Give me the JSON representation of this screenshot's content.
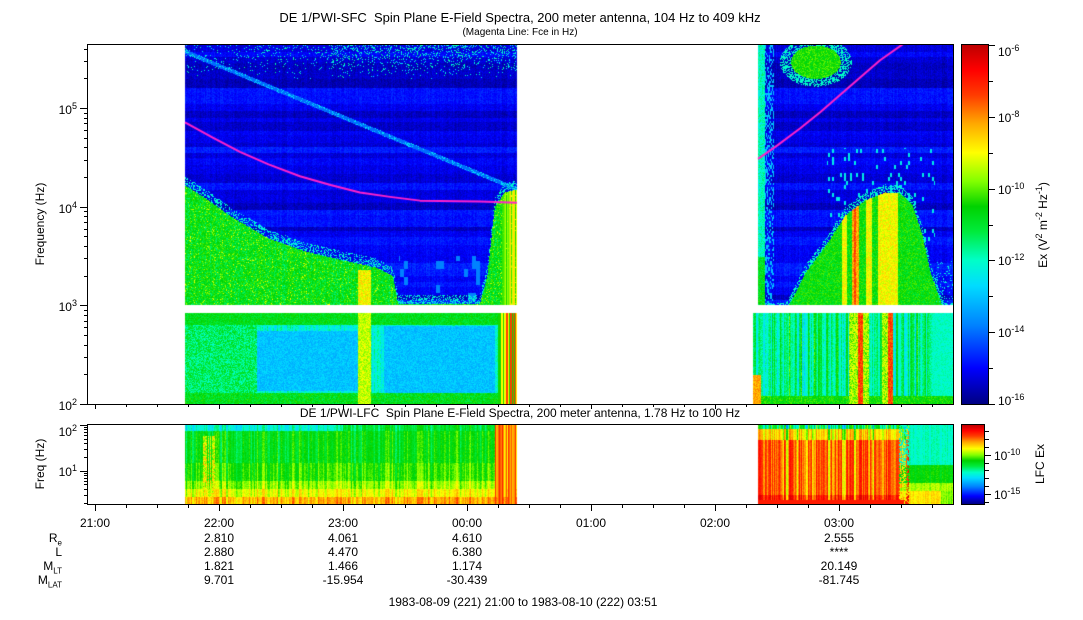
{
  "header": {
    "title": "DE 1/PWI-SFC  Spin Plane E-Field Spectra, 200 meter antenna, 104 Hz to 409 kHz",
    "subtitle": "(Magenta Line: Fce in Hz)"
  },
  "caption": "1983-08-09 (221) 21:00 to 1983-08-10 (222) 03:51",
  "ephemeris": {
    "row_labels": [
      {
        "base": "R",
        "sub": "e"
      },
      {
        "base": "L",
        "sub": ""
      },
      {
        "base": "M",
        "sub": "LT"
      },
      {
        "base": "M",
        "sub": "LAT"
      }
    ],
    "columns": [
      {
        "time_label": "22:00",
        "t": 22,
        "values": [
          "2.810",
          "2.880",
          "1.821",
          "9.701"
        ]
      },
      {
        "time_label": "23:00",
        "t": 23,
        "values": [
          "4.061",
          "4.470",
          "1.466",
          "-15.954"
        ]
      },
      {
        "time_label": "00:00",
        "t": 24,
        "values": [
          "4.610",
          "6.380",
          "1.174",
          "-30.439"
        ]
      },
      {
        "time_label": "03:00",
        "t": 27,
        "values": [
          "2.555",
          "****",
          "20.149",
          "-81.745"
        ]
      }
    ]
  },
  "chart_data": {
    "type": "heatmap",
    "description": "Two time-frequency electric-field spectrograms (SFC 104 Hz - 409 kHz, LFC 1.78 Hz - 100 Hz) with rainbow colormap, two data segments separated by gaps, white receiver-band gap near 1 kHz, and magenta electron cyclotron frequency (Fce) overlay",
    "colormap": [
      [
        0,
        0,
        0,
        130
      ],
      [
        0.1,
        0,
        0,
        255
      ],
      [
        0.22,
        0,
        130,
        255
      ],
      [
        0.33,
        0,
        220,
        255
      ],
      [
        0.4,
        0,
        255,
        200
      ],
      [
        0.48,
        0,
        235,
        60
      ],
      [
        0.55,
        0,
        210,
        0
      ],
      [
        0.62,
        130,
        255,
        0
      ],
      [
        0.7,
        255,
        255,
        0
      ],
      [
        0.78,
        255,
        170,
        0
      ],
      [
        0.86,
        255,
        60,
        0
      ],
      [
        0.93,
        255,
        0,
        0
      ],
      [
        1,
        190,
        0,
        0
      ]
    ],
    "time_axis": {
      "t_min": 20.944,
      "t_max": 27.919,
      "hours": [
        {
          "t": 21,
          "label": "21:00"
        },
        {
          "t": 22,
          "label": "22:00"
        },
        {
          "t": 23,
          "label": "23:00"
        },
        {
          "t": 24,
          "label": "00:00"
        },
        {
          "t": 25,
          "label": "01:00"
        },
        {
          "t": 26,
          "label": "02:00"
        },
        {
          "t": 27,
          "label": "03:00"
        }
      ],
      "minor_step_hours": 0.25
    },
    "sfc": {
      "ylabel": "Frequency (Hz)",
      "y_range_exp": [
        2.0,
        5.64
      ],
      "tick_base": "10",
      "yticks_exp": [
        5,
        4,
        3,
        2
      ],
      "white_band_exp": [
        2.93,
        3.0
      ],
      "colorbar": {
        "label_parts": [
          {
            "t": "Ex (V"
          },
          {
            "s": "2"
          },
          {
            "t": " m"
          },
          {
            "s": "-2"
          },
          {
            "t": " Hz"
          },
          {
            "s": "-1"
          },
          {
            "t": ")"
          }
        ],
        "range_exp": [
          -6,
          -16
        ],
        "major_ticks_exp": [
          -6,
          -8,
          -10,
          -12,
          -14,
          -16
        ],
        "minor_ticks_exp": [
          -7,
          -9,
          -11,
          -13,
          -15
        ]
      },
      "fce_line": {
        "color": "#FF22CC",
        "width": 2,
        "segments": [
          [
            [
              21.726,
              4.856
            ],
            [
              21.95,
              4.7
            ],
            [
              22.169,
              4.557
            ],
            [
              22.4,
              4.43
            ],
            [
              22.653,
              4.309
            ],
            [
              22.9,
              4.22
            ],
            [
              23.137,
              4.144
            ],
            [
              23.38,
              4.1
            ],
            [
              23.621,
              4.062
            ],
            [
              24.105,
              4.052
            ],
            [
              24.403,
              4.041
            ]
          ],
          [
            [
              26.347,
              4.485
            ],
            [
              26.5,
              4.62
            ],
            [
              26.685,
              4.794
            ],
            [
              26.85,
              4.96
            ],
            [
              27.008,
              5.134
            ],
            [
              27.17,
              5.31
            ],
            [
              27.331,
              5.485
            ],
            [
              27.573,
              5.7
            ]
          ]
        ]
      },
      "features": {
        "block1": {
          "t_range": [
            21.726,
            24.403
          ],
          "green_boundary": [
            [
              21.726,
              4.22
            ],
            [
              21.9,
              4.08
            ],
            [
              22.1,
              3.9
            ],
            [
              22.4,
              3.68
            ],
            [
              22.7,
              3.55
            ],
            [
              23.0,
              3.46
            ],
            [
              23.26,
              3.39
            ],
            [
              23.4,
              3.3
            ],
            [
              23.44,
              3.02
            ],
            [
              24.1,
              3.02
            ],
            [
              24.16,
              3.3
            ],
            [
              24.22,
              4.0
            ],
            [
              24.3,
              4.15
            ],
            [
              24.403,
              4.18
            ]
          ],
          "diag_streak": {
            "t0": 21.93,
            "e0": 5.47,
            "t1": 24.0,
            "e1": 4.39
          },
          "yellow_streak_t": [
            23.12,
            23.22
          ],
          "yellow_streak_emax": 3.36,
          "top_speckle_emin": 5.3,
          "speckle_dense_t": 22.9,
          "end_bright_t": 24.28,
          "bowls": [
            {
              "t": [
                22.25,
                23.15
              ],
              "e": [
                2.14,
                2.75
              ]
            },
            {
              "t": [
                23.33,
                24.22
              ],
              "e": [
                2.09,
                2.8
              ]
            }
          ],
          "left_green_t": 22.3,
          "end_streaks_t": 24.25
        },
        "block2": {
          "t_range_above": [
            26.339,
            27.919
          ],
          "t_range_below": [
            26.306,
            27.919
          ],
          "left_col_t": 26.4,
          "blob": {
            "t": 26.81,
            "e": 5.47,
            "rt": 0.2,
            "re": 0.17
          },
          "funnel_boundary": [
            [
              26.57,
              2.95
            ],
            [
              26.73,
              3.34
            ],
            [
              26.89,
              3.61
            ],
            [
              27.05,
              3.92
            ],
            [
              27.21,
              4.07
            ],
            [
              27.37,
              4.15
            ],
            [
              27.49,
              4.14
            ],
            [
              27.59,
              4.02
            ],
            [
              27.67,
              3.71
            ],
            [
              27.73,
              3.36
            ],
            [
              27.8,
              3.1
            ],
            [
              27.85,
              2.95
            ]
          ],
          "yellow_streaks": [
            [
              27.02,
              27.06,
              0.7
            ],
            [
              27.1,
              27.16,
              0.78
            ],
            [
              27.21,
              27.26,
              0.7
            ],
            [
              27.31,
              27.47,
              0.7
            ]
          ],
          "red_streak": [
            27.115,
            27.135,
            0.85
          ],
          "dash_region": {
            "t": [
              26.9,
              27.77
            ],
            "emax": 4.6
          },
          "right_dark_t": 27.78,
          "below_red_t": [
            [
              27.145,
              27.19
            ],
            [
              27.387,
              27.435
            ]
          ],
          "below_yellow_t": [
            [
              27.08,
              27.145
            ],
            [
              27.19,
              27.24
            ],
            [
              27.34,
              27.387
            ]
          ],
          "corner_orange_t": 26.37
        }
      }
    },
    "lfc": {
      "title": "DE 1/PWI-LFC  Spin Plane E-Field Spectra, 200 meter antenna, 1.78 Hz to 100 Hz",
      "ylabel": "Freq (Hz)",
      "y_range_exp": [
        0.27,
        2.0
      ],
      "tick_base": "10",
      "yticks_exp": [
        2,
        1
      ],
      "colorbar": {
        "label": "LFC Ex",
        "range_exp": [
          -6.3,
          -16.2
        ],
        "major_ticks_exp": [
          -10,
          -15
        ],
        "minor_ticks_exp": [
          -7,
          -8,
          -9,
          -11,
          -12,
          -13,
          -14,
          -16
        ]
      },
      "features": {
        "block1": {
          "t_range": [
            21.726,
            24.403
          ],
          "streak_t": [
            21.87,
            21.98
          ],
          "end_red_t": 24.22
        },
        "block2": {
          "t_range": [
            26.339,
            27.919
          ],
          "red_until": 27.48,
          "mix_until": 27.56,
          "dim_from": 27.82
        }
      }
    }
  }
}
